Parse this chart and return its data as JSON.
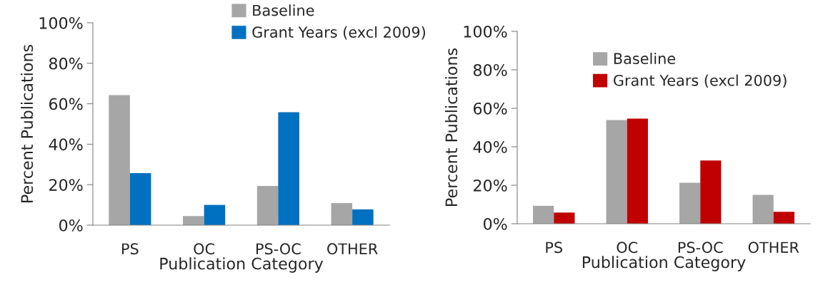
{
  "chart_data": [
    {
      "type": "bar",
      "xlabel": "Publication Category",
      "ylabel": "Percent Publications",
      "categories": [
        "PS",
        "OC",
        "PS-OC",
        "OTHER"
      ],
      "series": [
        {
          "name": "Baseline",
          "color": "#a6a6a6",
          "values": [
            64.3,
            4.5,
            19.4,
            10.9
          ]
        },
        {
          "name": "Grant Years (excl 2009)",
          "color": "#0070c0",
          "values": [
            25.7,
            10.0,
            55.8,
            7.8
          ]
        }
      ],
      "ylim": [
        0,
        100
      ],
      "yticks": [
        {
          "value": 0,
          "label": "0%"
        },
        {
          "value": 20,
          "label": "20%"
        },
        {
          "value": 40,
          "label": "40%"
        },
        {
          "value": 60,
          "label": "60%"
        },
        {
          "value": 80,
          "label": "80%"
        },
        {
          "value": 100,
          "label": "100%"
        }
      ],
      "legend": "top",
      "grid": false
    },
    {
      "type": "bar",
      "xlabel": "Publication Category",
      "ylabel": "Percent Publications",
      "categories": [
        "PS",
        "OC",
        "PS-OC",
        "OTHER"
      ],
      "series": [
        {
          "name": "Baseline",
          "color": "#a6a6a6",
          "values": [
            9.3,
            53.9,
            21.3,
            15.0
          ]
        },
        {
          "name": "Grant Years (excl 2009)",
          "color": "#c00000",
          "values": [
            5.8,
            54.6,
            32.9,
            6.2
          ]
        }
      ],
      "ylim": [
        0,
        100
      ],
      "yticks": [
        {
          "value": 0,
          "label": "0%"
        },
        {
          "value": 20,
          "label": "20%"
        },
        {
          "value": 40,
          "label": "40%"
        },
        {
          "value": 60,
          "label": "60%"
        },
        {
          "value": 80,
          "label": "80%"
        },
        {
          "value": 100,
          "label": "100%"
        }
      ],
      "legend": "top right",
      "grid": false
    }
  ]
}
